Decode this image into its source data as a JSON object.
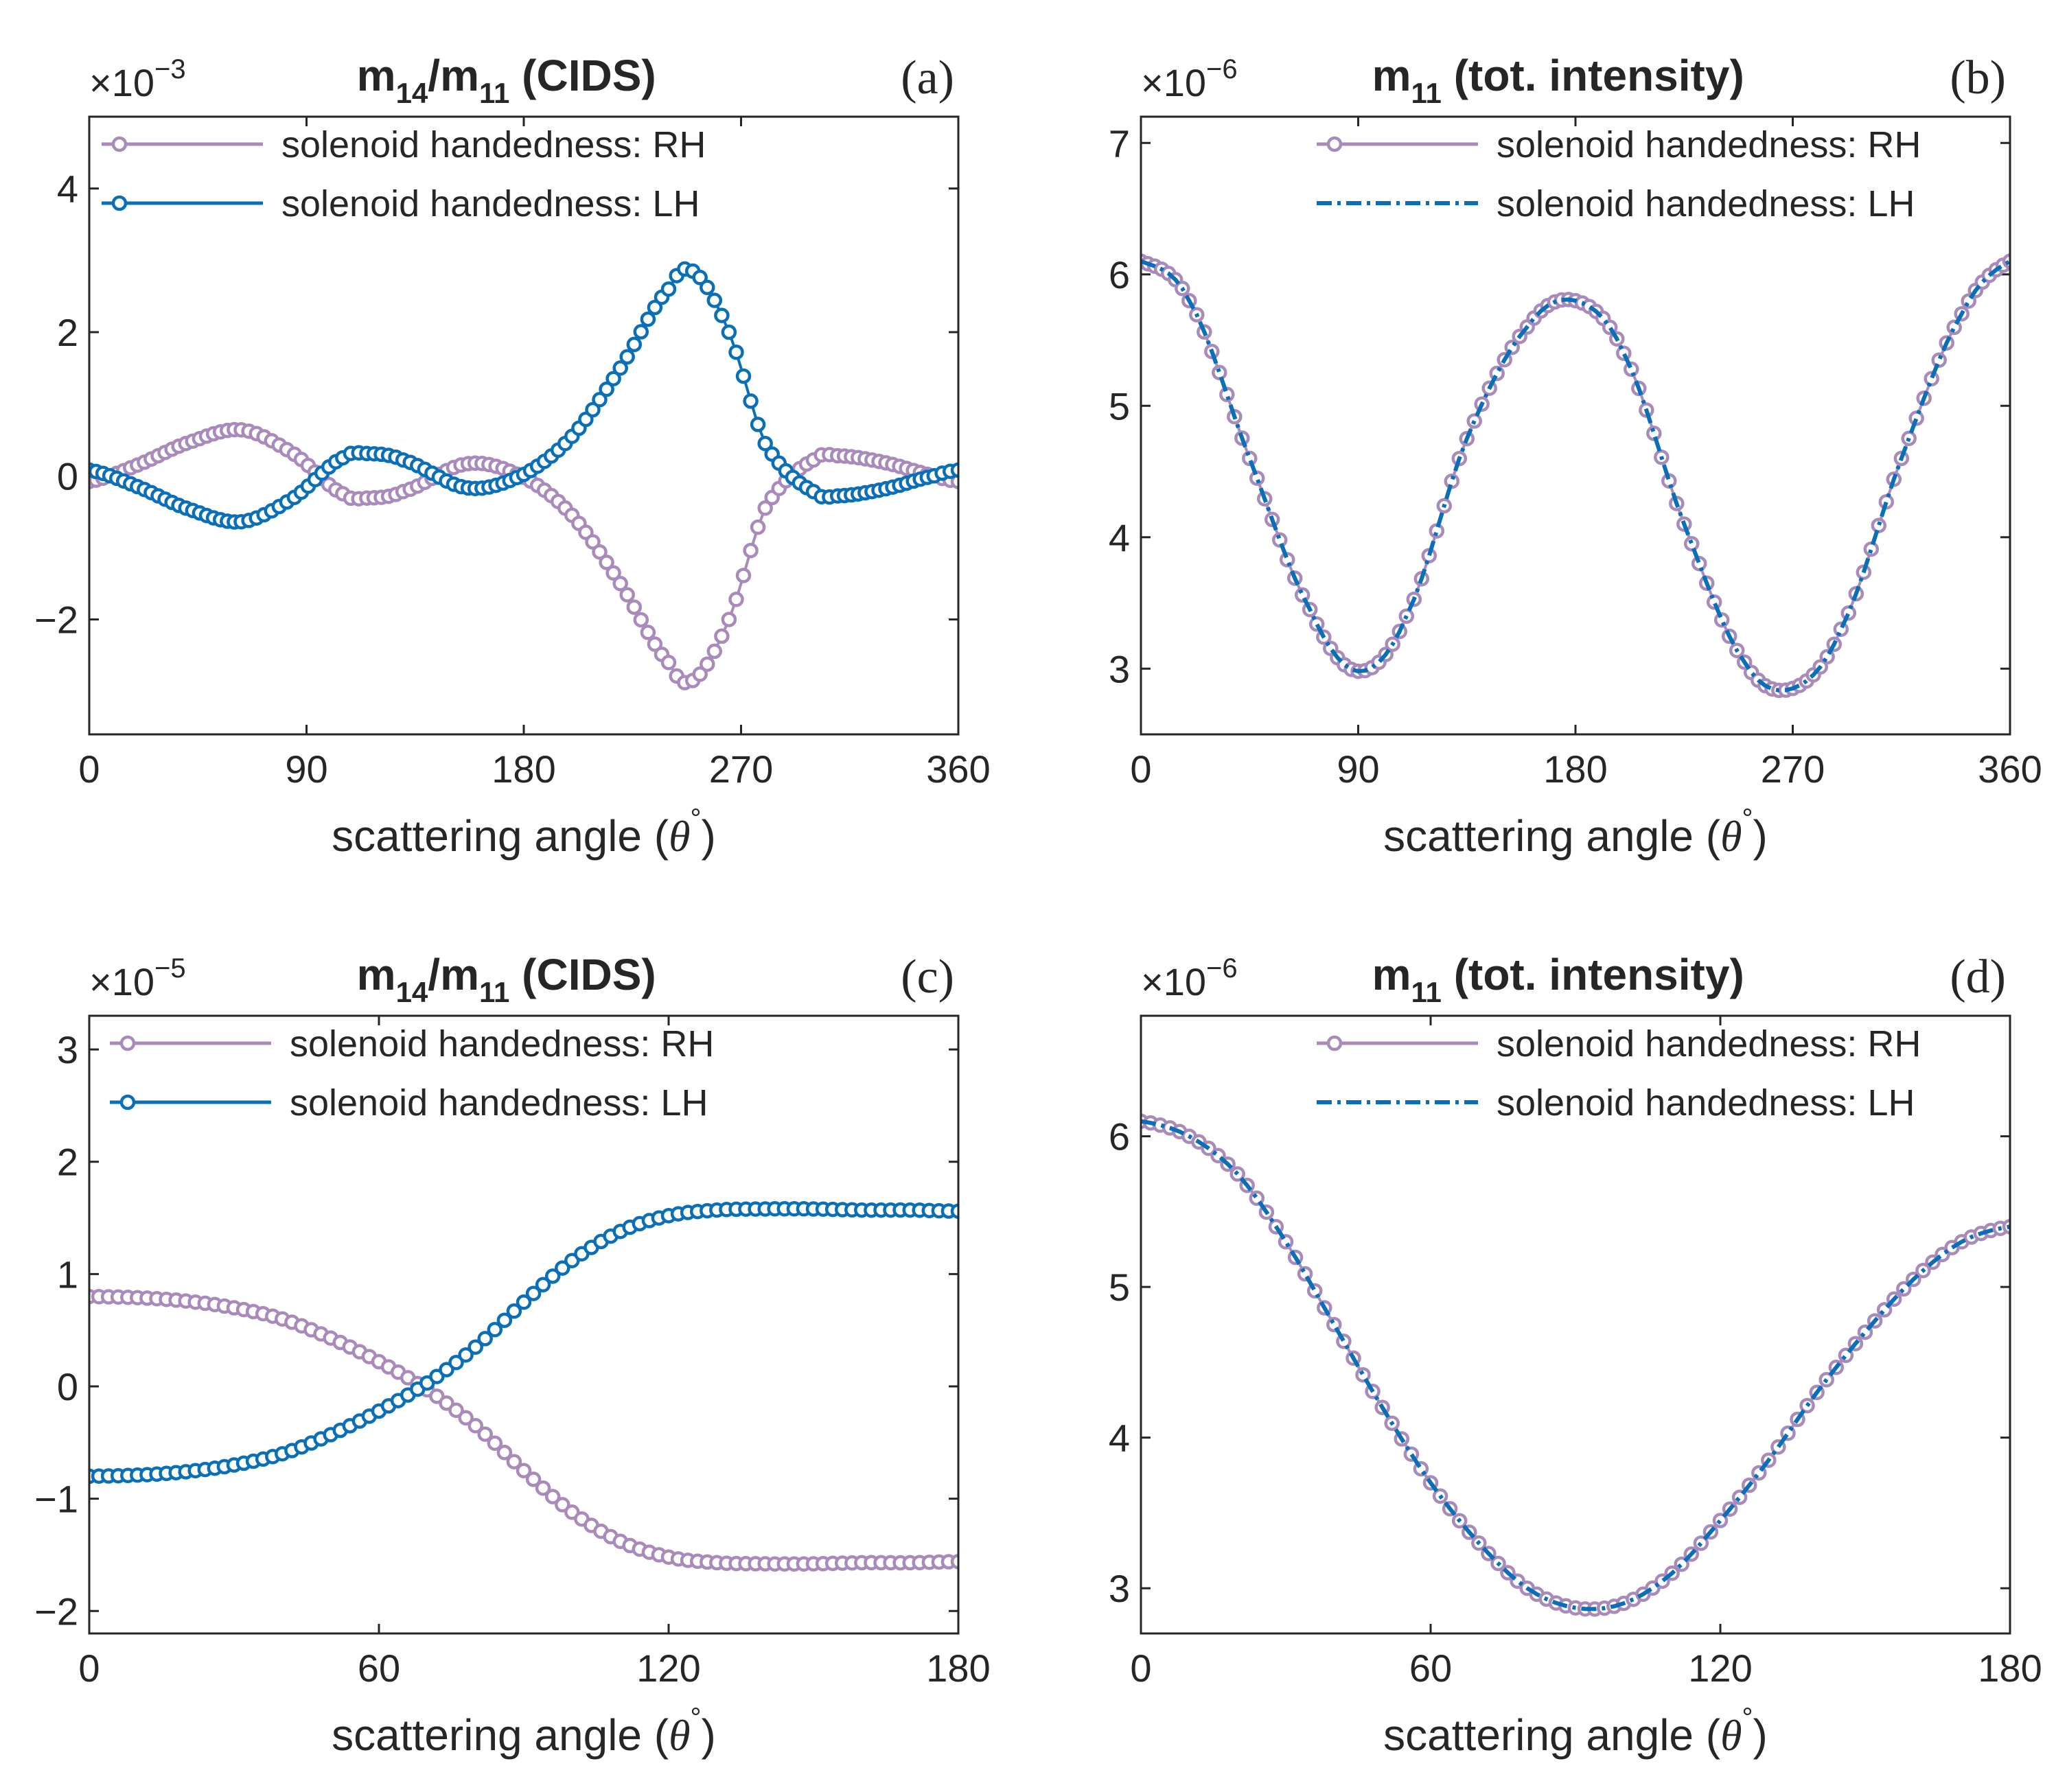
{
  "figure": {
    "colors": {
      "rh": "#a88bba",
      "lh": "#0a6fb7",
      "axis": "#262626"
    },
    "legend_rh": "solenoid handedness: RH",
    "legend_lh": "solenoid handedness: LH"
  },
  "chart_data": [
    {
      "id": "a",
      "type": "line",
      "panel_label": "(a)",
      "title": "m14/m11 (CIDS)",
      "title_parts": {
        "m1": "m",
        "s1": "14",
        "sep": "/m",
        "s2": "11",
        "rest": " (CIDS)"
      },
      "xlabel": "scattering angle (θ°)",
      "ylabel": "",
      "exponent": "-3",
      "xlim": [
        0,
        360
      ],
      "ylim": [
        -3.6,
        5.0
      ],
      "xticks": [
        0,
        90,
        180,
        270,
        360
      ],
      "yticks": [
        -2,
        0,
        2,
        4
      ],
      "ytick_labels": [
        "−2",
        "0",
        "2",
        "4"
      ],
      "legend_position": "top-left",
      "lh_style": "solid-markers",
      "series": [
        {
          "name": "solenoid handedness: RH",
          "x": [
            0,
            20,
            40,
            63,
            85,
            105,
            115,
            130,
            157,
            180,
            200,
            220,
            240,
            250,
            265,
            280,
            300,
            310,
            330,
            350,
            360
          ],
          "values": [
            -0.08,
            0.15,
            0.45,
            0.64,
            0.3,
            -0.25,
            -0.31,
            -0.22,
            0.17,
            -0.02,
            -0.55,
            -1.5,
            -2.6,
            -2.85,
            -2.0,
            -0.45,
            0.22,
            0.28,
            0.18,
            0.0,
            -0.08
          ]
        },
        {
          "name": "solenoid handedness: LH",
          "x": [
            0,
            20,
            40,
            63,
            85,
            105,
            115,
            130,
            157,
            180,
            200,
            220,
            240,
            250,
            265,
            280,
            300,
            310,
            330,
            350,
            360
          ],
          "values": [
            0.08,
            -0.15,
            -0.45,
            -0.64,
            -0.3,
            0.25,
            0.31,
            0.22,
            -0.17,
            0.02,
            0.55,
            1.5,
            2.6,
            2.85,
            2.0,
            0.45,
            -0.22,
            -0.28,
            -0.18,
            0.0,
            0.08
          ]
        }
      ]
    },
    {
      "id": "b",
      "type": "line",
      "panel_label": "(b)",
      "title": "m11 (tot. intensity)",
      "title_parts": {
        "m1": "m",
        "s1": "11",
        "sep": "",
        "s2": "",
        "rest": " (tot. intensity)"
      },
      "xlabel": "scattering angle (θ°)",
      "ylabel": "",
      "exponent": "-6",
      "xlim": [
        0,
        360
      ],
      "ylim": [
        2.5,
        7.2
      ],
      "xticks": [
        0,
        90,
        180,
        270,
        360
      ],
      "yticks": [
        3,
        4,
        5,
        6,
        7
      ],
      "ytick_labels": [
        "3",
        "4",
        "5",
        "6",
        "7"
      ],
      "legend_position": "top-right",
      "lh_style": "dashdot",
      "series": [
        {
          "name": "solenoid handedness: RH",
          "x": [
            0,
            20,
            45,
            70,
            90,
            110,
            135,
            160,
            180,
            200,
            225,
            250,
            270,
            290,
            315,
            340,
            360
          ],
          "values": [
            6.1,
            5.8,
            4.6,
            3.45,
            2.98,
            3.4,
            4.75,
            5.6,
            5.8,
            5.4,
            4.1,
            3.05,
            2.85,
            3.3,
            4.6,
            5.7,
            6.1
          ]
        },
        {
          "name": "solenoid handedness: LH",
          "x": [
            0,
            20,
            45,
            70,
            90,
            110,
            135,
            160,
            180,
            200,
            225,
            250,
            270,
            290,
            315,
            340,
            360
          ],
          "values": [
            6.1,
            5.8,
            4.6,
            3.45,
            2.98,
            3.4,
            4.75,
            5.6,
            5.8,
            5.4,
            4.1,
            3.05,
            2.85,
            3.3,
            4.6,
            5.7,
            6.1
          ]
        }
      ]
    },
    {
      "id": "c",
      "type": "line",
      "panel_label": "(c)",
      "title": "m14/m11 (CIDS)",
      "title_parts": {
        "m1": "m",
        "s1": "14",
        "sep": "/m",
        "s2": "11",
        "rest": " (CIDS)"
      },
      "xlabel": "scattering angle (θ°)",
      "ylabel": "",
      "exponent": "-5",
      "xlim": [
        0,
        180
      ],
      "ylim": [
        -2.2,
        3.3
      ],
      "xticks": [
        0,
        60,
        120,
        180
      ],
      "yticks": [
        -2,
        -1,
        0,
        1,
        2,
        3
      ],
      "ytick_labels": [
        "−2",
        "−1",
        "0",
        "1",
        "2",
        "3"
      ],
      "legend_position": "top-center",
      "lh_style": "solid-markers",
      "series": [
        {
          "name": "solenoid handedness: RH",
          "x": [
            0,
            10,
            20,
            30,
            40,
            50,
            60,
            70,
            80,
            90,
            100,
            110,
            120,
            130,
            140,
            150,
            160,
            170,
            180
          ],
          "values": [
            0.8,
            0.79,
            0.76,
            0.7,
            0.6,
            0.43,
            0.22,
            -0.03,
            -0.35,
            -0.75,
            -1.12,
            -1.38,
            -1.52,
            -1.57,
            -1.58,
            -1.58,
            -1.57,
            -1.57,
            -1.56
          ]
        },
        {
          "name": "solenoid handedness: LH",
          "x": [
            0,
            10,
            20,
            30,
            40,
            50,
            60,
            70,
            80,
            90,
            100,
            110,
            120,
            130,
            140,
            150,
            160,
            170,
            180
          ],
          "values": [
            -0.8,
            -0.79,
            -0.76,
            -0.7,
            -0.6,
            -0.43,
            -0.22,
            0.03,
            0.35,
            0.75,
            1.12,
            1.38,
            1.52,
            1.57,
            1.58,
            1.58,
            1.57,
            1.57,
            1.56
          ]
        }
      ]
    },
    {
      "id": "d",
      "type": "line",
      "panel_label": "(d)",
      "title": "m11 (tot. intensity)",
      "title_parts": {
        "m1": "m",
        "s1": "11",
        "sep": "",
        "s2": "",
        "rest": " (tot. intensity)"
      },
      "xlabel": "scattering angle (θ°)",
      "ylabel": "",
      "exponent": "-6",
      "xlim": [
        0,
        180
      ],
      "ylim": [
        2.7,
        6.8
      ],
      "xticks": [
        0,
        60,
        120,
        180
      ],
      "yticks": [
        3,
        4,
        5,
        6
      ],
      "ytick_labels": [
        "3",
        "4",
        "5",
        "6"
      ],
      "legend_position": "top-right",
      "lh_style": "dashdot",
      "series": [
        {
          "name": "solenoid handedness: RH",
          "x": [
            0,
            10,
            20,
            30,
            40,
            50,
            60,
            70,
            80,
            90,
            100,
            110,
            120,
            130,
            140,
            150,
            160,
            170,
            180
          ],
          "values": [
            6.1,
            6.0,
            5.75,
            5.3,
            4.75,
            4.2,
            3.7,
            3.3,
            3.0,
            2.87,
            2.9,
            3.1,
            3.45,
            3.85,
            4.3,
            4.7,
            5.05,
            5.3,
            5.4
          ]
        },
        {
          "name": "solenoid handedness: LH",
          "x": [
            0,
            10,
            20,
            30,
            40,
            50,
            60,
            70,
            80,
            90,
            100,
            110,
            120,
            130,
            140,
            150,
            160,
            170,
            180
          ],
          "values": [
            6.1,
            6.0,
            5.75,
            5.3,
            4.75,
            4.2,
            3.7,
            3.3,
            3.0,
            2.87,
            2.9,
            3.1,
            3.45,
            3.85,
            4.3,
            4.7,
            5.05,
            5.3,
            5.4
          ]
        }
      ]
    }
  ]
}
